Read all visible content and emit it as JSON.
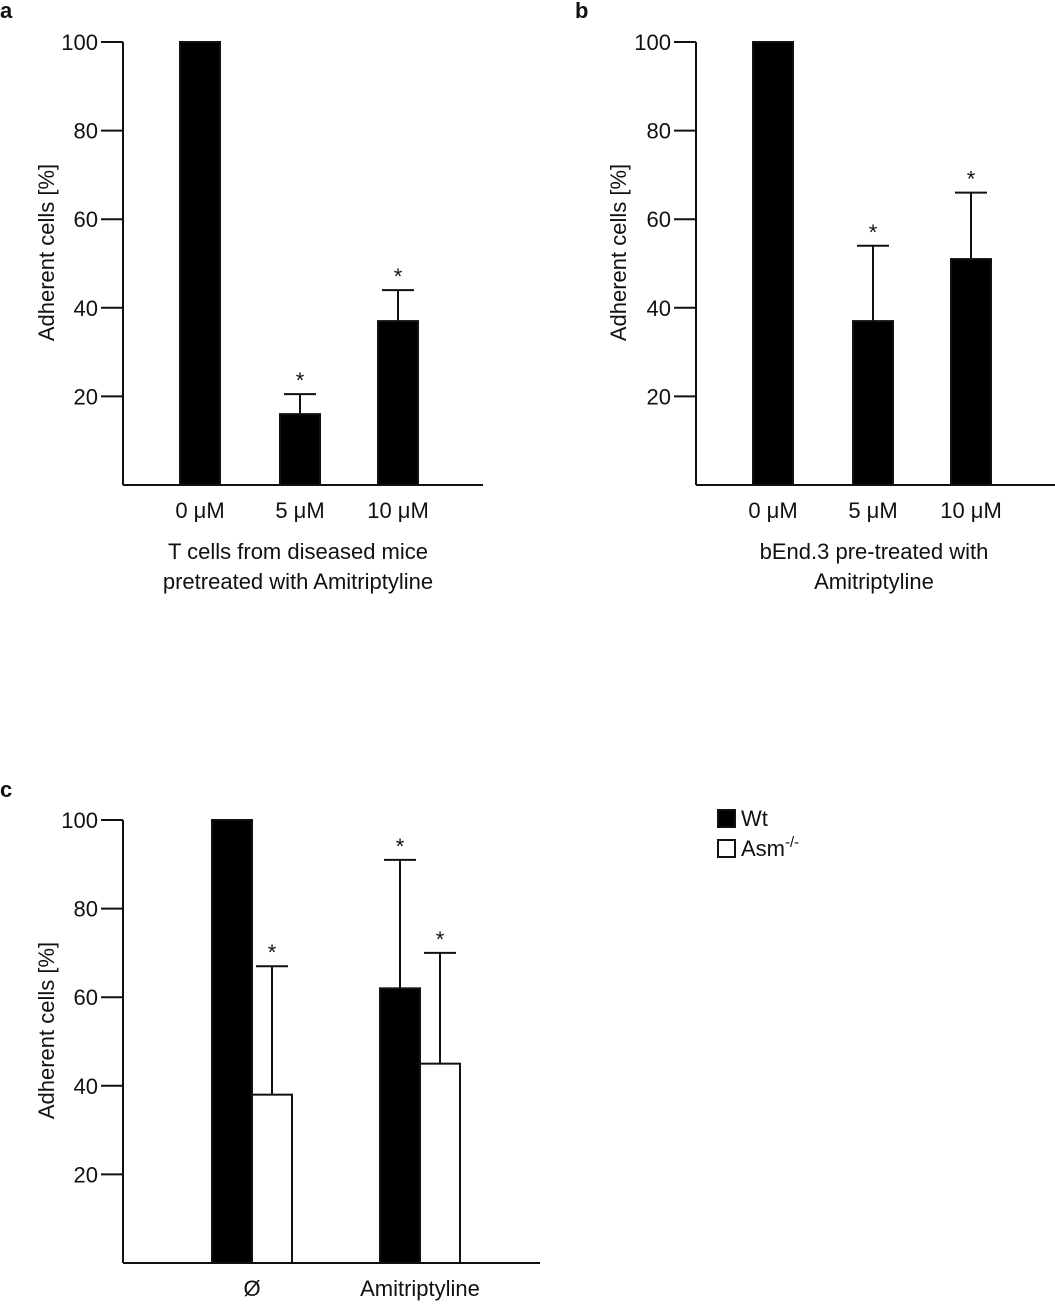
{
  "chart_data": [
    {
      "panel": "a",
      "type": "bar",
      "categories": [
        "0 μM",
        "5 μM",
        "10 μM"
      ],
      "values": [
        100,
        16,
        37
      ],
      "errors": [
        0,
        4.5,
        7
      ],
      "significance": [
        "",
        "*",
        "*"
      ],
      "ylabel": "Adherent cells [%]",
      "xlabel_lines": [
        "T cells from diseased mice",
        "pretreated with Amitriptyline"
      ],
      "yticks": [
        20,
        40,
        60,
        80,
        100
      ],
      "ylim": [
        0,
        100
      ],
      "colors": [
        "#000000"
      ]
    },
    {
      "panel": "b",
      "type": "bar",
      "categories": [
        "0 μM",
        "5 μM",
        "10 μM"
      ],
      "values": [
        100,
        37,
        51
      ],
      "errors": [
        0,
        17,
        15
      ],
      "significance": [
        "",
        "*",
        "*"
      ],
      "ylabel": "Adherent cells [%]",
      "xlabel_lines": [
        "bEnd.3 pre-treated with",
        "Amitriptyline"
      ],
      "yticks": [
        20,
        40,
        60,
        80,
        100
      ],
      "ylim": [
        0,
        100
      ],
      "colors": [
        "#000000"
      ]
    },
    {
      "panel": "c",
      "type": "bar",
      "categories": [
        "Ø",
        "Amitriptyline"
      ],
      "series": [
        {
          "name": "Wt",
          "values": [
            100,
            62
          ],
          "errors": [
            0,
            29
          ],
          "significance": [
            "",
            "*"
          ],
          "fill": "#000000"
        },
        {
          "name": "Asm",
          "name_sup": "-/-",
          "values": [
            38,
            45
          ],
          "errors": [
            29,
            25
          ],
          "significance": [
            "*",
            "*"
          ],
          "fill": "#ffffff"
        }
      ],
      "ylabel": "Adherent cells [%]",
      "yticks": [
        20,
        40,
        60,
        80,
        100
      ],
      "ylim": [
        0,
        100
      ],
      "legend_position": "top-right"
    }
  ]
}
